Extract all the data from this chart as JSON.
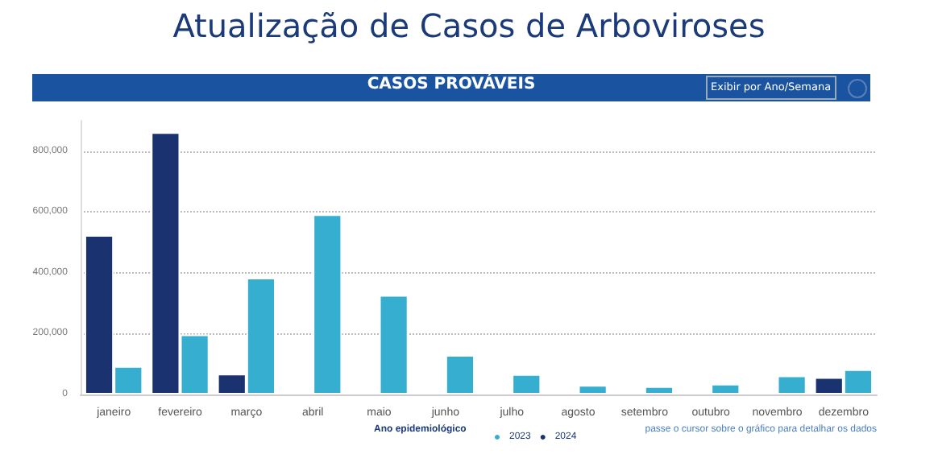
{
  "chart_data": {
    "type": "bar",
    "title": "Atualização de Casos de Arboviroses",
    "subtitle": "CASOS PROVÁVEIS",
    "categories": [
      "janeiro",
      "fevereiro",
      "março",
      "abril",
      "maio",
      "junho",
      "julho",
      "agosto",
      "setembro",
      "outubro",
      "novembro",
      "dezembro"
    ],
    "series": [
      {
        "name": "2024",
        "color": "#1a3270",
        "values": [
          524000,
          862000,
          68000,
          null,
          null,
          null,
          null,
          null,
          null,
          null,
          null,
          57000
        ]
      },
      {
        "name": "2023",
        "color": "#35aed0",
        "values": [
          93000,
          197000,
          384000,
          592000,
          327000,
          130000,
          67000,
          31000,
          27000,
          35000,
          62000,
          83000
        ]
      }
    ],
    "legend_title": "Ano epidemiológico",
    "legend": "bottom",
    "ylim": [
      0,
      900000
    ],
    "yticks": [
      {
        "value": 0,
        "label": "0"
      },
      {
        "value": 200000,
        "label": "200,000"
      },
      {
        "value": 400000,
        "label": "400,000"
      },
      {
        "value": 600000,
        "label": "600,000"
      },
      {
        "value": 800000,
        "label": "800,000"
      }
    ],
    "grid": "y",
    "annotations": [
      "Exibir por Ano/Semana",
      "passe o cursor sobre o gráfico para detalhar os dados"
    ]
  }
}
